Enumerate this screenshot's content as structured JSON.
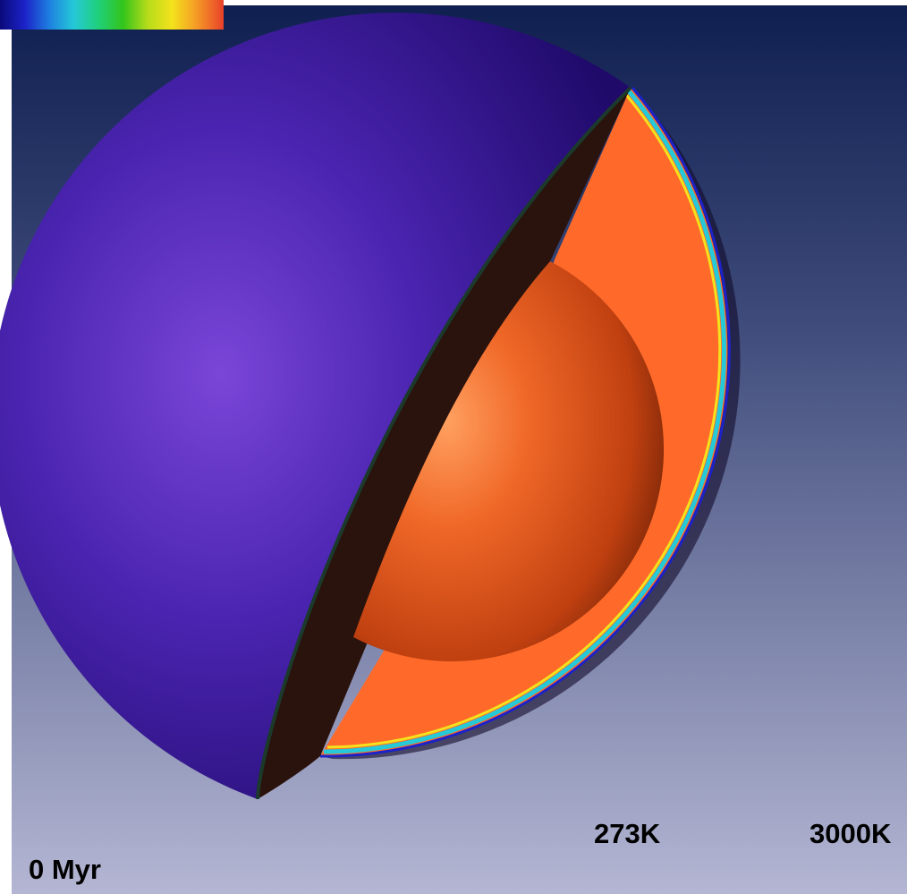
{
  "figure": {
    "time_label": "0 Myr",
    "colorbar": {
      "min_label": "273K",
      "max_label": "3000K",
      "colors": [
        "#0a0a7a",
        "#1c22c8",
        "#1e7fe0",
        "#25c9d8",
        "#1fd07a",
        "#33c41c",
        "#b6dc1a",
        "#f4e21c",
        "#f59a26",
        "#e8402a"
      ]
    },
    "colors": {
      "background_top": "#0f1f4f",
      "background_bottom": "#b4b6d3",
      "outer_shell": "#3d1aa0",
      "cut_face": "#2a130c",
      "mantle": "#ff6a2a",
      "core": "#e25316"
    }
  }
}
